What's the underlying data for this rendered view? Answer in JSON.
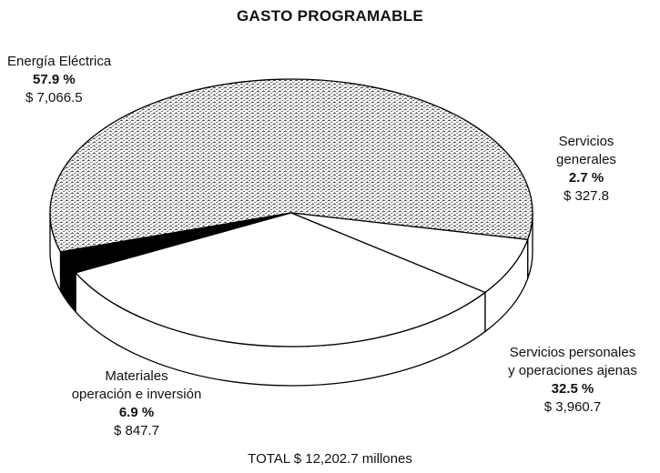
{
  "chart_data": {
    "type": "pie",
    "title": "GASTO PROGRAMABLE",
    "slices": [
      {
        "label": "Energía Eléctrica",
        "percent_label": "57.9 %",
        "amount_label": "$ 7,066.5",
        "value": 7066.5,
        "color": "#d8d8d8"
      },
      {
        "label": "Servicios generales",
        "percent_label": "2.7 %",
        "amount_label": "$ 327.8",
        "value": 327.8,
        "color": "#000000"
      },
      {
        "label": "Servicios personales y operaciones ajenas",
        "percent_label": "32.5 %",
        "amount_label": "$ 3,960.7",
        "value": 3960.7,
        "color": "#ffffff"
      },
      {
        "label": "Materiales operación e inversión",
        "percent_label": "6.9 %",
        "amount_label": "$ 847.7",
        "value": 847.7,
        "color": "#ffffff"
      }
    ],
    "total_label": "TOTAL $ 12,202.7 millones"
  },
  "labels": {
    "energia_line1": "Energía Eléctrica",
    "servgen_line1": "Servicios",
    "servgen_line2": "generales",
    "servpers_line1": "Servicios personales",
    "servpers_line2": "y operaciones ajenas",
    "mat_line1": "Materiales",
    "mat_line2": "operación e inversión"
  }
}
